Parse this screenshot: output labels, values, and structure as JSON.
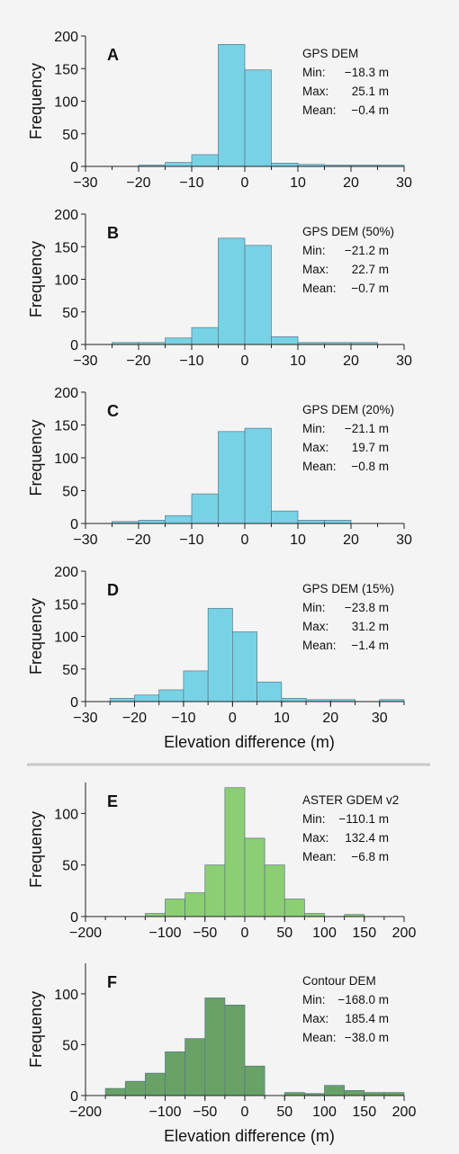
{
  "colors": {
    "background": "#f4f4f4",
    "blue_bars": "#78d2e6",
    "light_green_bars": "#8cce72",
    "dark_green_bars": "#68a266",
    "separator": "#c8c8c8"
  },
  "chart_data": [
    {
      "type": "bar",
      "panel": "A",
      "legend_title": "GPS DEM",
      "stats": [
        {
          "label": "Min:",
          "value": "−18.3 m"
        },
        {
          "label": "Max:",
          "value": "25.1 m"
        },
        {
          "label": "Mean:",
          "value": "−0.4 m"
        }
      ],
      "xlim": [
        -30,
        30
      ],
      "ylim": [
        0,
        200
      ],
      "xticks": [
        "−30",
        "−20",
        "−10",
        "0",
        "10",
        "20",
        "30"
      ],
      "yticks": [
        "0",
        "50",
        "100",
        "150",
        "200"
      ],
      "ylabel": "Frequency",
      "xlabel": "",
      "bin_edges": [
        -20,
        -15,
        -10,
        -5,
        0,
        5,
        10,
        15,
        20,
        25,
        30
      ],
      "values": [
        2,
        6,
        18,
        187,
        148,
        5,
        3,
        2,
        2,
        2
      ]
    },
    {
      "type": "bar",
      "panel": "B",
      "legend_title": "GPS DEM (50%)",
      "stats": [
        {
          "label": "Min:",
          "value": "−21.2 m"
        },
        {
          "label": "Max:",
          "value": "22.7 m"
        },
        {
          "label": "Mean:",
          "value": "−0.7 m"
        }
      ],
      "xlim": [
        -30,
        30
      ],
      "ylim": [
        0,
        200
      ],
      "xticks": [
        "−30",
        "−20",
        "−10",
        "0",
        "10",
        "20",
        "30"
      ],
      "yticks": [
        "0",
        "50",
        "100",
        "150",
        "200"
      ],
      "ylabel": "Frequency",
      "xlabel": "",
      "bin_edges": [
        -25,
        -20,
        -15,
        -10,
        -5,
        0,
        5,
        10,
        15,
        20,
        25
      ],
      "values": [
        3,
        3,
        10,
        26,
        163,
        152,
        12,
        3,
        3,
        3
      ]
    },
    {
      "type": "bar",
      "panel": "C",
      "legend_title": "GPS DEM (20%)",
      "stats": [
        {
          "label": "Min:",
          "value": "−21.1 m"
        },
        {
          "label": "Max:",
          "value": "19.7 m"
        },
        {
          "label": "Mean:",
          "value": "−0.8 m"
        }
      ],
      "xlim": [
        -30,
        30
      ],
      "ylim": [
        0,
        200
      ],
      "xticks": [
        "−30",
        "−20",
        "−10",
        "0",
        "10",
        "20",
        "30"
      ],
      "yticks": [
        "0",
        "50",
        "100",
        "150",
        "200"
      ],
      "ylabel": "Frequency",
      "xlabel": "",
      "bin_edges": [
        -25,
        -20,
        -15,
        -10,
        -5,
        0,
        5,
        10,
        15,
        20
      ],
      "values": [
        3,
        5,
        12,
        45,
        140,
        145,
        19,
        5,
        5
      ]
    },
    {
      "type": "bar",
      "panel": "D",
      "legend_title": "GPS DEM (15%)",
      "stats": [
        {
          "label": "Min:",
          "value": "−23.8 m"
        },
        {
          "label": "Max:",
          "value": "31.2 m"
        },
        {
          "label": "Mean:",
          "value": "−1.4 m"
        }
      ],
      "xlim": [
        -30,
        35
      ],
      "ylim": [
        0,
        200
      ],
      "xticks": [
        "−30",
        "−20",
        "−10",
        "0",
        "10",
        "20",
        "30"
      ],
      "yticks": [
        "0",
        "50",
        "100",
        "150",
        "200"
      ],
      "ylabel": "Frequency",
      "xlabel": "Elevation difference (m)",
      "bin_edges": [
        -25,
        -20,
        -15,
        -10,
        -5,
        0,
        5,
        10,
        15,
        20,
        25,
        30,
        35
      ],
      "values": [
        5,
        10,
        18,
        47,
        143,
        107,
        30,
        5,
        3,
        3,
        0,
        3
      ]
    },
    {
      "type": "bar",
      "panel": "E",
      "legend_title": "ASTER GDEM v2",
      "stats": [
        {
          "label": "Min:",
          "value": "−110.1 m"
        },
        {
          "label": "Max:",
          "value": "132.4 m"
        },
        {
          "label": "Mean:",
          "value": "−6.8 m"
        }
      ],
      "xlim": [
        -200,
        200
      ],
      "ylim": [
        0,
        130
      ],
      "xticks": [
        "−200",
        "−100",
        "−50",
        "0",
        "50",
        "100",
        "150",
        "200"
      ],
      "yticks": [
        "0",
        "50",
        "100"
      ],
      "ylabel": "Frequency",
      "xlabel": "",
      "bin_edges": [
        -125,
        -100,
        -75,
        -50,
        -25,
        0,
        25,
        50,
        75,
        100,
        125,
        150
      ],
      "values": [
        3,
        17,
        23,
        50,
        125,
        76,
        50,
        17,
        3,
        0,
        2
      ]
    },
    {
      "type": "bar",
      "panel": "F",
      "legend_title": "Contour DEM",
      "stats": [
        {
          "label": "Min:",
          "value": "−168.0 m"
        },
        {
          "label": "Max:",
          "value": "185.4 m"
        },
        {
          "label": "Mean:",
          "value": "−38.0 m"
        }
      ],
      "xlim": [
        -200,
        200
      ],
      "ylim": [
        0,
        130
      ],
      "xticks": [
        "−200",
        "−100",
        "−50",
        "0",
        "50",
        "100",
        "150",
        "200"
      ],
      "yticks": [
        "0",
        "50",
        "100"
      ],
      "ylabel": "Frequency",
      "xlabel": "Elevation difference (m)",
      "bin_edges": [
        -175,
        -150,
        -125,
        -100,
        -75,
        -50,
        -25,
        0,
        25,
        50,
        75,
        100,
        125,
        150,
        175,
        200
      ],
      "values": [
        7,
        14,
        22,
        43,
        56,
        96,
        89,
        29,
        0,
        3,
        2,
        10,
        5,
        3,
        3
      ]
    }
  ]
}
